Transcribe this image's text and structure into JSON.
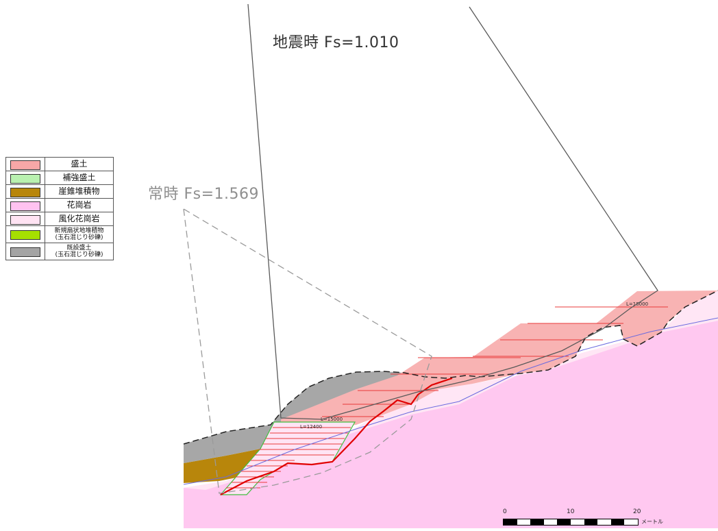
{
  "annotations": {
    "seismic_label": "地震時 Fs=1.010",
    "normal_label": "常時 Fs=1.569",
    "anchor_lengths": [
      "L=18000",
      "L=15000",
      "L=12400"
    ]
  },
  "legend": {
    "items": [
      {
        "label": "盛土",
        "color": "#f7a7a7"
      },
      {
        "label": "補強盛土",
        "color": "#b9f1b0"
      },
      {
        "label": "崖錐堆積物",
        "color": "#b8860b"
      },
      {
        "label": "花崗岩",
        "color": "#ffc2f0"
      },
      {
        "label": "風化花崗岩",
        "color": "#ffe3f3"
      },
      {
        "label": "新規扇状地堆積物\n(玉石混じり砂礫)",
        "color": "#a6e000"
      },
      {
        "label": "既設盛土\n(玉石混じり砂礫)",
        "color": "#a4a4a4"
      }
    ]
  },
  "scale_bar": {
    "ticks": [
      "0",
      "10",
      "20"
    ],
    "unit": "メートル"
  },
  "colors": {
    "slip_circle": "#595959",
    "slip_normal": "#9a9a9a",
    "reinforcement_line": "#e83a3a",
    "failure_line": "#e00000",
    "water_table": "#6a6adf"
  }
}
